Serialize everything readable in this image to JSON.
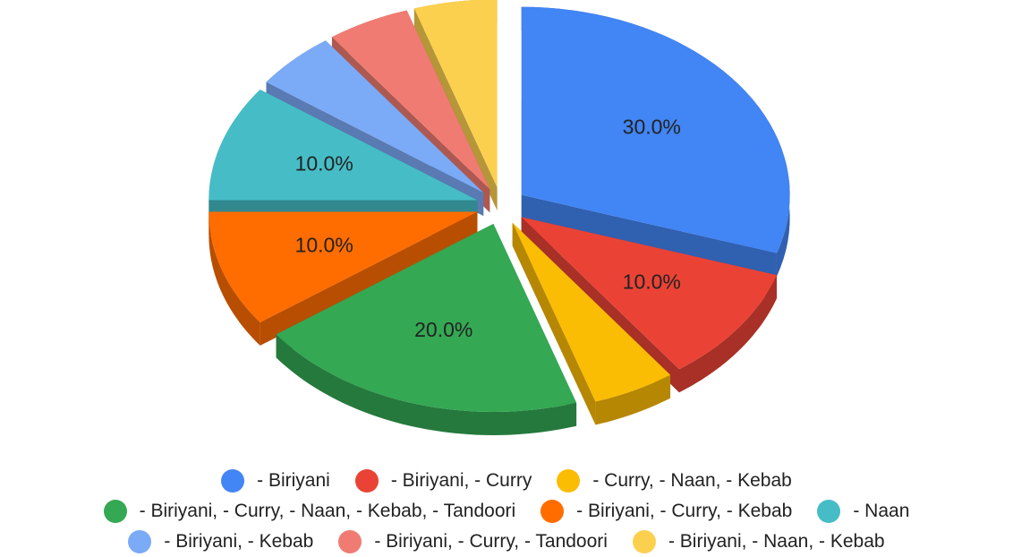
{
  "chart_data": {
    "type": "pie3d",
    "categories": [
      "- Biriyani",
      "- Biriyani, - Curry",
      "- Curry, - Naan, - Kebab",
      "- Biriyani, - Curry, - Naan, - Kebab, - Tandoori",
      "- Biriyani, - Curry, - Kebab",
      "- Naan",
      "- Biriyani, - Kebab",
      "- Biriyani, - Curry, - Tandoori",
      "- Biriyani, - Naan, - Kebab"
    ],
    "values": [
      30,
      10,
      5,
      20,
      10,
      10,
      5,
      5,
      5
    ],
    "value_labels": [
      "30.0%",
      "10.0%",
      null,
      "20.0%",
      "10.0%",
      "10.0%",
      null,
      null,
      null
    ],
    "colors": [
      "#4285f4",
      "#ea4335",
      "#fbbc04",
      "#34a853",
      "#ff6d01",
      "#46bdc6",
      "#7baaf7",
      "#f07b72",
      "#fcd04f"
    ],
    "legend": "bottom"
  }
}
